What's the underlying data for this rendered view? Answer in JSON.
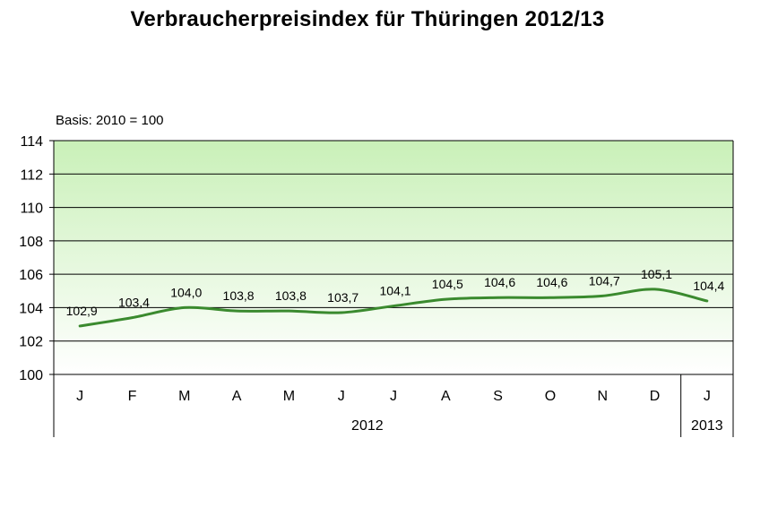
{
  "chart_data": {
    "type": "line",
    "title": "Verbraucherpreisindex für Thüringen 2012/13",
    "subtitle": "Basis: 2010 = 100",
    "categories": [
      "J",
      "F",
      "M",
      "A",
      "M",
      "J",
      "J",
      "A",
      "S",
      "O",
      "N",
      "D",
      "J"
    ],
    "category_groups": [
      {
        "label": "2012",
        "span": 12
      },
      {
        "label": "2013",
        "span": 1
      }
    ],
    "values": [
      102.9,
      103.4,
      104.0,
      103.8,
      103.8,
      103.7,
      104.1,
      104.5,
      104.6,
      104.6,
      104.7,
      105.1,
      104.4
    ],
    "data_labels": [
      "102,9",
      "103,4",
      "104,0",
      "103,8",
      "103,8",
      "103,7",
      "104,1",
      "104,5",
      "104,6",
      "104,6",
      "104,7",
      "105,1",
      "104,4"
    ],
    "ylim": [
      100,
      114
    ],
    "yticks": [
      100,
      102,
      104,
      106,
      108,
      110,
      112,
      114
    ],
    "xlabel": "",
    "ylabel": "",
    "grid": true,
    "line_color": "#3a8a2e",
    "background_gradient": [
      "#ffffff",
      "#c9f0b8"
    ]
  }
}
